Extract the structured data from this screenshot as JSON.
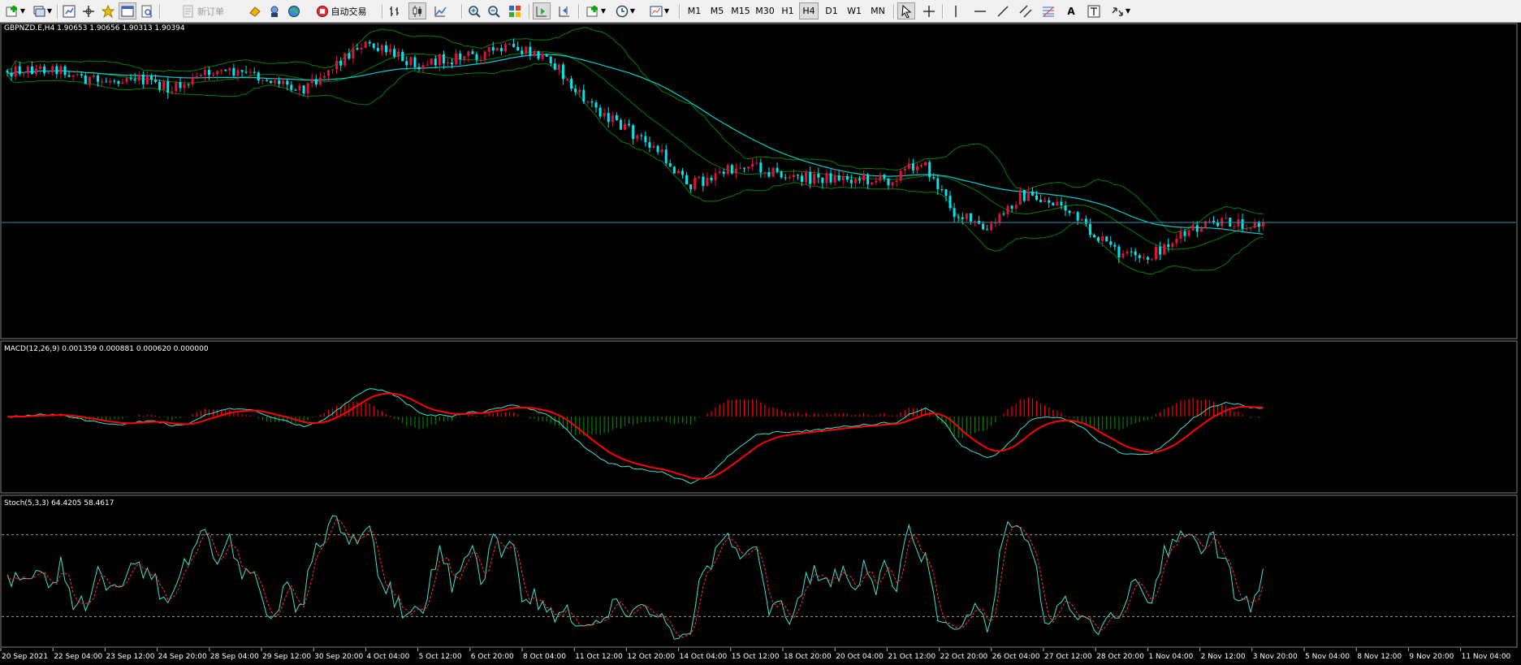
{
  "toolbar": {
    "new_order_label": "新订单",
    "auto_trading_label": "自动交易",
    "timeframes": [
      "M1",
      "M5",
      "M15",
      "M30",
      "H1",
      "H4",
      "D1",
      "W1",
      "MN"
    ],
    "selected_timeframe": "H4",
    "text_tool_label": "A"
  },
  "colors": {
    "bull": "#dc143c",
    "bear": "#00e5ee",
    "bands": "#008000",
    "ma": "#00ced1",
    "macd_line": "#40e0d0",
    "signal_line": "#ff0000",
    "hist_pos": "#ff0000",
    "hist_neg": "#008000",
    "stoch_main": "#40e0d0",
    "stoch_signal": "#ff3030"
  },
  "main_panel": {
    "label": "GBPNZD.E,H4  1.90653 1.90656 1.90313 1.90394",
    "symbol": "GBPNZD.E",
    "period": "H4",
    "open": "1.90653",
    "high": "1.90656",
    "low": "1.90313",
    "close": "1.90394"
  },
  "macd_panel": {
    "label": "MACD(12,26,9) 0.001359 0.000881 0.000620 0.000000",
    "params": "12,26,9",
    "values": [
      "0.001359",
      "0.000881",
      "0.000620",
      "0.000000"
    ]
  },
  "stoch_panel": {
    "label": "Stoch(5,3,3) 64.4205 58.4617",
    "params": "5,3,3",
    "main": "64.4205",
    "signal": "58.4617",
    "levels": [
      80,
      20
    ]
  },
  "x_axis_labels": [
    "20 Sep 2021",
    "22 Sep 04:00",
    "23 Sep 12:00",
    "24 Sep 20:00",
    "28 Sep 04:00",
    "29 Sep 12:00",
    "30 Sep 20:00",
    "4 Oct 04:00",
    "5 Oct 12:00",
    "6 Oct 20:00",
    "8 Oct 04:00",
    "11 Oct 12:00",
    "12 Oct 20:00",
    "14 Oct 04:00",
    "15 Oct 12:00",
    "18 Oct 20:00",
    "20 Oct 04:00",
    "21 Oct 12:00",
    "22 Oct 20:00",
    "26 Oct 04:00",
    "27 Oct 12:00",
    "28 Oct 20:00",
    "1 Nov 04:00",
    "2 Nov 12:00",
    "3 Nov 20:00",
    "5 Nov 04:00",
    "8 Nov 12:00",
    "9 Nov 20:00",
    "11 Nov 04:00"
  ],
  "chart_data": {
    "type": "candlestick",
    "symbol": "GBPNZD.E",
    "timeframe": "H4",
    "last_bar": {
      "open": 1.90653,
      "high": 1.90656,
      "low": 1.90313,
      "close": 1.90394
    },
    "trend_path": [
      [
        0,
        0.15
      ],
      [
        12,
        0.14
      ],
      [
        22,
        0.2
      ],
      [
        30,
        0.17
      ],
      [
        40,
        0.23
      ],
      [
        50,
        0.15
      ],
      [
        60,
        0.17
      ],
      [
        72,
        0.22
      ],
      [
        80,
        0.12
      ],
      [
        86,
        0.04
      ],
      [
        100,
        0.12
      ],
      [
        112,
        0.09
      ],
      [
        122,
        0.06
      ],
      [
        132,
        0.1
      ],
      [
        138,
        0.24
      ],
      [
        146,
        0.34
      ],
      [
        158,
        0.48
      ],
      [
        166,
        0.62
      ],
      [
        172,
        0.58
      ],
      [
        180,
        0.53
      ],
      [
        190,
        0.59
      ],
      [
        202,
        0.59
      ],
      [
        214,
        0.6
      ],
      [
        222,
        0.52
      ],
      [
        230,
        0.73
      ],
      [
        238,
        0.81
      ],
      [
        246,
        0.66
      ],
      [
        256,
        0.7
      ],
      [
        262,
        0.8
      ],
      [
        270,
        0.9
      ],
      [
        276,
        0.93
      ],
      [
        282,
        0.86
      ],
      [
        290,
        0.79
      ],
      [
        298,
        0.77
      ],
      [
        305,
        0.79
      ]
    ],
    "indicators": [
      "Bollinger Bands",
      "Moving Average",
      "MACD(12,26,9)",
      "Stoch(5,3,3)"
    ]
  }
}
